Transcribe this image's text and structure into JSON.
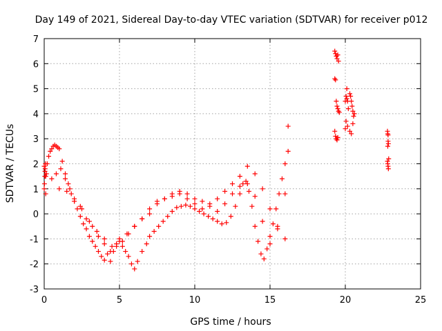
{
  "chart_data": {
    "type": "scatter",
    "title": "Day 149 of 2021, Sidereal Day-to-day VTEC variation (SDTVAR) for receiver p012",
    "xlabel": "GPS time / hours",
    "ylabel": "SDTVAR / TECUs",
    "xlim": [
      0,
      25
    ],
    "ylim": [
      -3,
      7
    ],
    "xticks": [
      "0",
      "5",
      "10",
      "15",
      "20",
      "25"
    ],
    "yticks": [
      "-3",
      "-2",
      "-1",
      "0",
      "1",
      "2",
      "3",
      "4",
      "5",
      "6",
      "7"
    ],
    "grid": true,
    "marker": "+",
    "color": "#ff0000",
    "series": [
      {
        "name": "SDTVAR",
        "x": [
          0.0,
          0.05,
          0.1,
          0.15,
          0.2,
          0.3,
          0.4,
          0.5,
          0.6,
          0.7,
          0.8,
          0.9,
          1.0,
          1.2,
          1.4,
          1.6,
          1.8,
          2.0,
          2.2,
          2.4,
          2.6,
          2.8,
          3.0,
          3.2,
          3.4,
          3.6,
          3.8,
          4.0,
          4.2,
          4.4,
          4.6,
          4.8,
          5.0,
          5.2,
          5.4,
          5.6,
          5.8,
          6.0,
          6.2,
          6.5,
          6.8,
          7.0,
          7.3,
          7.6,
          7.9,
          8.2,
          8.5,
          8.8,
          9.1,
          9.4,
          9.7,
          10.0,
          10.3,
          10.6,
          10.9,
          11.2,
          11.5,
          11.8,
          12.1,
          12.4,
          12.7,
          13.0,
          13.2,
          13.4,
          13.6,
          13.8,
          14.0,
          14.2,
          14.4,
          14.6,
          14.8,
          15.0,
          15.2,
          15.4,
          15.6,
          15.8,
          16.0,
          16.2,
          0.5,
          0.8,
          1.1,
          1.4,
          1.7,
          2.0,
          2.4,
          2.8,
          3.2,
          3.6,
          4.0,
          4.4,
          4.8,
          5.2,
          5.6,
          6.0,
          6.5,
          7.0,
          7.5,
          8.0,
          8.5,
          9.0,
          9.5,
          10.0,
          10.5,
          11.0,
          11.5,
          12.0,
          12.5,
          13.0,
          13.5,
          14.0,
          14.5,
          15.0,
          15.5,
          16.0,
          1.0,
          1.5,
          2.0,
          2.5,
          3.0,
          3.5,
          4.0,
          4.5,
          5.0,
          5.5,
          6.0,
          6.5,
          7.0,
          7.5,
          8.0,
          8.5,
          9.0,
          9.5,
          10.0,
          10.5,
          11.0,
          11.5,
          12.0,
          12.5,
          13.0,
          13.5,
          14.0,
          14.5,
          15.0,
          15.5,
          16.0,
          16.2,
          0.0,
          0.02,
          0.04,
          0.06,
          0.08,
          0.1,
          19.3,
          19.35,
          19.4,
          19.45,
          19.5,
          19.55,
          19.3,
          19.35,
          19.4,
          19.45,
          19.5,
          19.55,
          19.6,
          19.3,
          19.35,
          19.4,
          19.45,
          19.5,
          20.0,
          20.05,
          20.1,
          20.15,
          20.0,
          20.05,
          20.1,
          20.15,
          20.2,
          20.3,
          20.35,
          20.4,
          20.45,
          20.5,
          20.55,
          20.3,
          20.4,
          20.5,
          20.6,
          22.8,
          22.82,
          22.84,
          22.86,
          22.8,
          22.82,
          22.84,
          22.86,
          22.88,
          22.82,
          22.84
        ],
        "y": [
          1.9,
          1.7,
          1.5,
          1.6,
          2.0,
          2.3,
          2.5,
          2.6,
          2.7,
          2.75,
          2.7,
          2.65,
          2.6,
          2.1,
          1.6,
          1.2,
          0.8,
          0.5,
          0.2,
          -0.1,
          -0.4,
          -0.6,
          -0.9,
          -1.1,
          -1.3,
          -1.5,
          -1.7,
          -1.85,
          -1.6,
          -1.9,
          -1.5,
          -1.2,
          -1.0,
          -1.3,
          -1.5,
          -1.7,
          -2.0,
          -2.2,
          -1.9,
          -1.5,
          -1.2,
          -0.9,
          -0.7,
          -0.5,
          -0.3,
          -0.1,
          0.1,
          0.25,
          0.3,
          0.35,
          0.3,
          0.2,
          0.1,
          0.0,
          -0.1,
          -0.2,
          -0.3,
          -0.4,
          -0.35,
          -0.1,
          0.3,
          0.8,
          1.2,
          1.3,
          0.9,
          0.3,
          -0.5,
          -1.1,
          -1.6,
          -1.8,
          -1.4,
          -0.9,
          -0.4,
          0.2,
          0.8,
          1.4,
          2.0,
          2.5,
          1.4,
          1.6,
          1.8,
          1.4,
          1.0,
          0.6,
          0.3,
          -0.2,
          -0.5,
          -0.9,
          -1.2,
          -1.5,
          -1.3,
          -1.1,
          -0.8,
          -0.5,
          -0.2,
          0.2,
          0.5,
          0.6,
          0.7,
          0.8,
          0.6,
          0.4,
          0.2,
          0.4,
          0.6,
          0.9,
          1.2,
          1.5,
          1.9,
          1.6,
          1.0,
          0.2,
          -0.6,
          -1.0,
          1.0,
          0.9,
          0.5,
          0.2,
          -0.3,
          -0.7,
          -1.0,
          -1.3,
          -1.1,
          -0.8,
          -0.5,
          -0.2,
          0.0,
          0.4,
          0.6,
          0.8,
          0.9,
          0.8,
          0.6,
          0.5,
          0.3,
          0.1,
          0.4,
          0.8,
          1.1,
          1.2,
          0.7,
          -0.3,
          -1.2,
          -0.5,
          0.8,
          3.5,
          1.0,
          1.2,
          1.5,
          1.8,
          2.0,
          0.8,
          6.5,
          6.4,
          6.3,
          6.2,
          6.35,
          6.1,
          5.4,
          5.35,
          4.5,
          4.3,
          4.2,
          4.1,
          4.05,
          3.3,
          3.1,
          3.0,
          2.95,
          3.05,
          4.5,
          4.7,
          5.0,
          3.5,
          3.4,
          3.7,
          4.6,
          4.5,
          4.2,
          4.8,
          4.7,
          4.5,
          4.3,
          4.1,
          3.9,
          3.3,
          3.2,
          3.6,
          4.0,
          3.3,
          3.2,
          3.15,
          2.8,
          2.1,
          2.0,
          1.9,
          1.8,
          2.2,
          2.7,
          2.9
        ]
      }
    ]
  }
}
